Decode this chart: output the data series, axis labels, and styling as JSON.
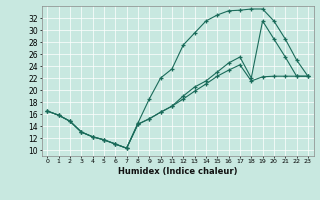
{
  "xlabel": "Humidex (Indice chaleur)",
  "bg_color": "#c8e8e0",
  "line_color": "#1a6b5a",
  "xlim": [
    -0.5,
    23.5
  ],
  "ylim": [
    9.0,
    34.0
  ],
  "xticks": [
    0,
    1,
    2,
    3,
    4,
    5,
    6,
    7,
    8,
    9,
    10,
    11,
    12,
    13,
    14,
    15,
    16,
    17,
    18,
    19,
    20,
    21,
    22,
    23
  ],
  "yticks": [
    10,
    12,
    14,
    16,
    18,
    20,
    22,
    24,
    26,
    28,
    30,
    32
  ],
  "line1_x": [
    0,
    1,
    2,
    3,
    4,
    5,
    6,
    7,
    8,
    9,
    10,
    11,
    12,
    13,
    14,
    15,
    16,
    17,
    18,
    19,
    20,
    21,
    22,
    23
  ],
  "line1_y": [
    16.5,
    15.8,
    14.8,
    13.0,
    12.2,
    11.7,
    11.0,
    10.3,
    14.5,
    18.5,
    22.0,
    23.5,
    27.5,
    29.5,
    31.5,
    32.5,
    33.2,
    33.3,
    33.5,
    33.5,
    31.5,
    28.5,
    25.0,
    22.3
  ],
  "line2_x": [
    0,
    1,
    2,
    3,
    4,
    5,
    6,
    7,
    8,
    9,
    10,
    11,
    12,
    13,
    14,
    15,
    16,
    17,
    18,
    19,
    20,
    21,
    22,
    23
  ],
  "line2_y": [
    16.5,
    15.8,
    14.8,
    13.0,
    12.2,
    11.7,
    11.0,
    10.3,
    14.3,
    15.2,
    16.3,
    17.3,
    18.5,
    19.8,
    21.0,
    22.3,
    23.3,
    24.2,
    21.5,
    22.2,
    22.3,
    22.3,
    22.3,
    22.3
  ],
  "line3_x": [
    0,
    1,
    2,
    3,
    4,
    5,
    6,
    7,
    8,
    9,
    10,
    11,
    12,
    13,
    14,
    15,
    16,
    17,
    18,
    19,
    20,
    21,
    22,
    23
  ],
  "line3_y": [
    16.5,
    15.8,
    14.8,
    13.0,
    12.2,
    11.7,
    11.0,
    10.3,
    14.3,
    15.2,
    16.3,
    17.3,
    19.0,
    20.5,
    21.5,
    23.0,
    24.5,
    25.5,
    22.0,
    31.5,
    28.5,
    25.5,
    22.3,
    22.3
  ]
}
